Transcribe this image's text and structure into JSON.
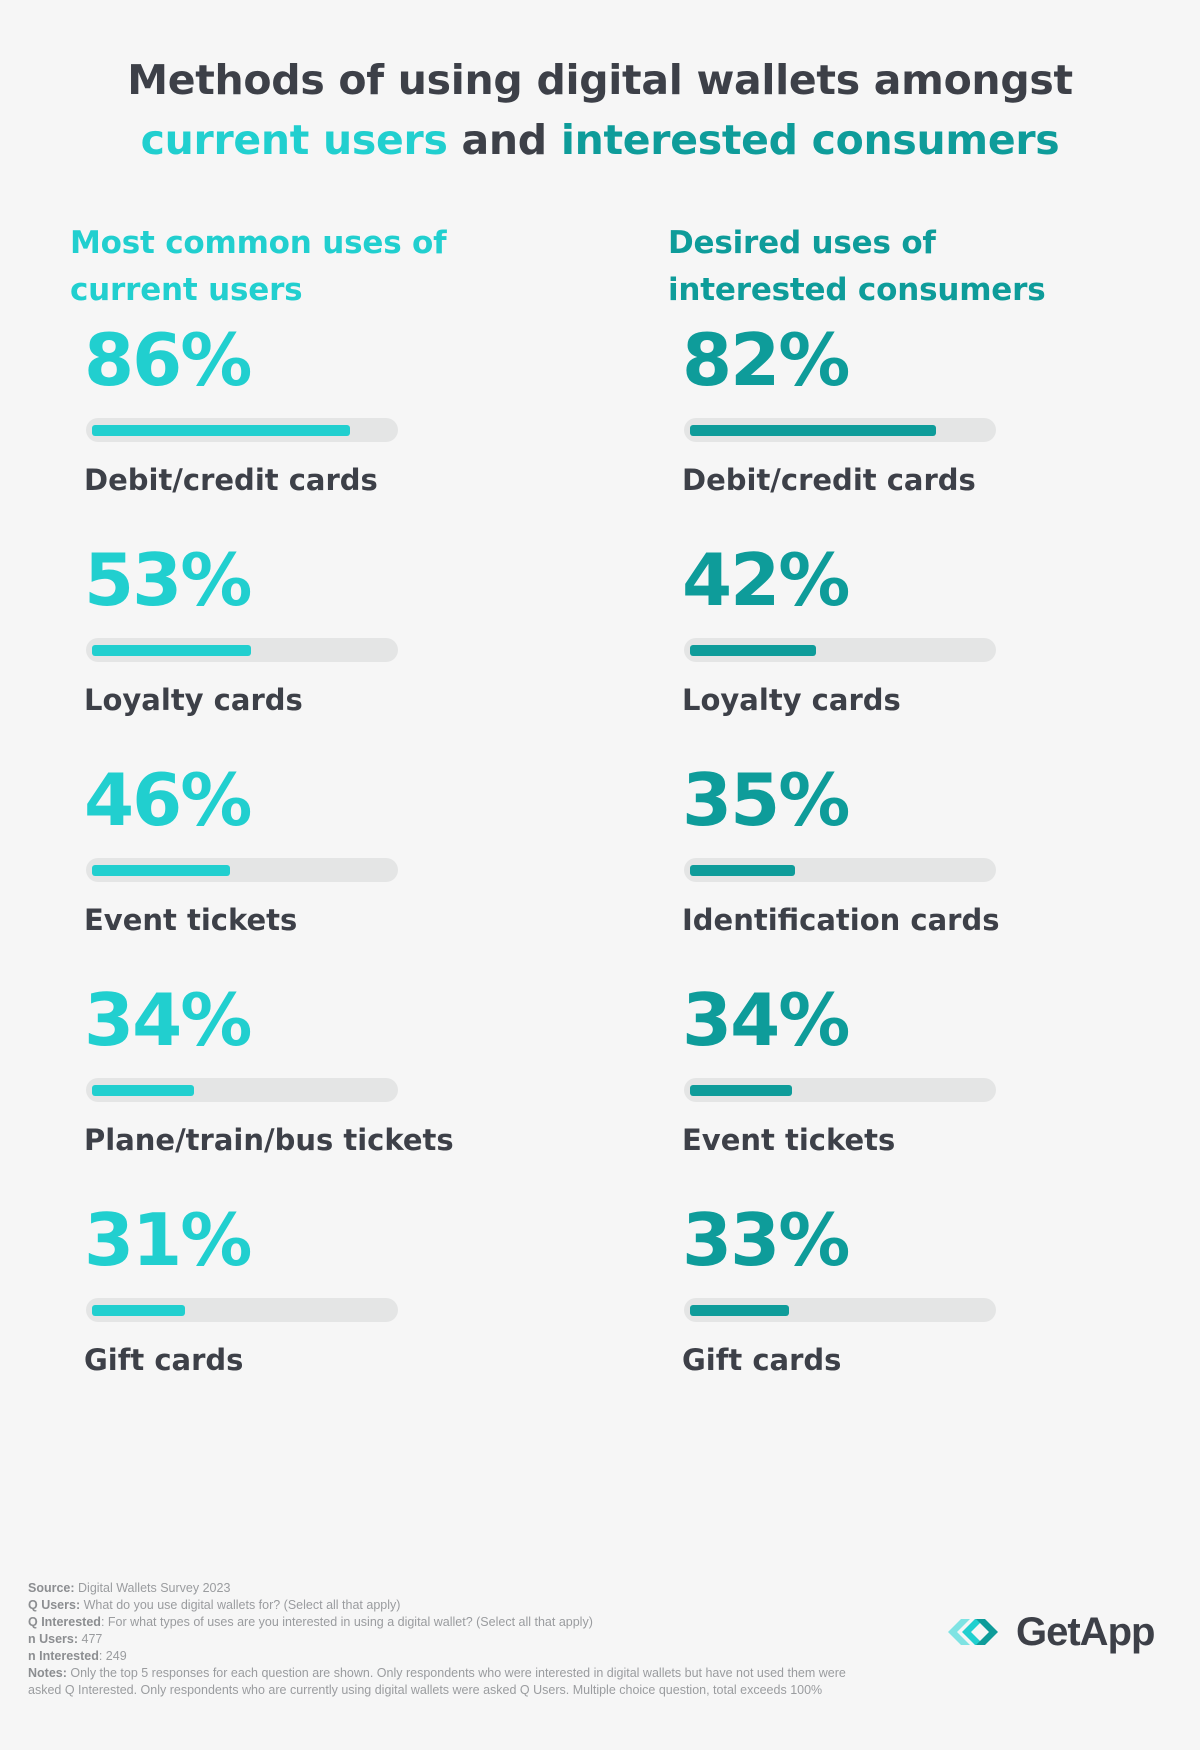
{
  "title": {
    "line1": "Methods of using digital wallets amongst",
    "line2_part1": "current users",
    "line2_mid": " and ",
    "line2_part2": "interested consumers"
  },
  "colors": {
    "current_users": "#21cfcf",
    "interested_consumers": "#0e9c9a",
    "track": "#e4e5e5"
  },
  "chart_data": [
    {
      "type": "bar",
      "title": "Most common uses of current users",
      "series": [
        {
          "name": "current users",
          "values": [
            86,
            53,
            46,
            34,
            31
          ]
        }
      ],
      "categories": [
        "Debit/credit cards",
        "Loyalty cards",
        "Event tickets",
        "Plane/train/bus tickets",
        "Gift cards"
      ],
      "value_labels": [
        "86%",
        "53%",
        "46%",
        "34%",
        "31%"
      ],
      "ylim": [
        0,
        100
      ]
    },
    {
      "type": "bar",
      "title": "Desired uses of interested consumers",
      "series": [
        {
          "name": "interested consumers",
          "values": [
            82,
            42,
            35,
            34,
            33
          ]
        }
      ],
      "categories": [
        "Debit/credit cards",
        "Loyalty cards",
        "Identification cards",
        "Event tickets",
        "Gift cards"
      ],
      "value_labels": [
        "82%",
        "42%",
        "35%",
        "34%",
        "33%"
      ],
      "ylim": [
        0,
        100
      ]
    }
  ],
  "headings": {
    "left": {
      "line1": "Most common uses of",
      "line2": "current users"
    },
    "right": {
      "line1": "Desired uses of",
      "line2": "interested consumers"
    }
  },
  "notes": {
    "source_label": "Source:",
    "source_text": " Digital Wallets Survey 2023",
    "q_users_label": "Q Users:",
    "q_users_text": " What do you use digital wallets for? (Select all that apply)",
    "q_interested_label": "Q Interested",
    "q_interested_text": ": For what types of uses are you interested in using a digital wallet? (Select all that apply)",
    "n_users_label": "n Users:",
    "n_users_text": " 477",
    "n_interested_label": "n Interested",
    "n_interested_text": ": 249",
    "notes_label": "Notes:",
    "notes_text": " Only the top 5 responses for each question are shown. Only respondents who were interested in digital wallets but have not used them were asked Q Interested. Only respondents who are currently using digital wallets were asked Q Users. Multiple choice question, total exceeds 100%"
  },
  "logo": {
    "text": "GetApp",
    "icon": "getapp-chevrons-icon"
  }
}
